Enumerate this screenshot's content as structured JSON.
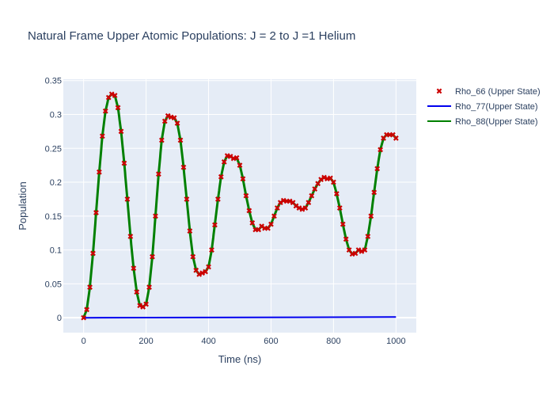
{
  "chart_data": {
    "type": "scatter",
    "title": "Natural Frame Upper Atomic Populations: J = 2 to J =1 Helium",
    "xlabel": "Time (ns)",
    "ylabel": "Population",
    "xlim": [
      -65,
      1065
    ],
    "ylim": [
      -0.022,
      0.352
    ],
    "xticks": [
      0,
      200,
      400,
      600,
      800,
      1000
    ],
    "yticks": [
      0,
      0.05,
      0.1,
      0.15,
      0.2,
      0.25,
      0.3,
      0.35
    ],
    "ytick_labels": [
      "0",
      "0.05",
      "0.1",
      "0.15",
      "0.2",
      "0.25",
      "0.3",
      "0.35"
    ],
    "grid": true,
    "legend_position": "right",
    "background": "#e5ecf6",
    "series": [
      {
        "name": "Rho_66 (Upper State)",
        "mode": "markers",
        "marker": "x",
        "color": "#cc0000",
        "x": [
          0,
          10,
          20,
          30,
          40,
          50,
          60,
          70,
          80,
          90,
          100,
          110,
          120,
          130,
          140,
          150,
          160,
          170,
          180,
          190,
          200,
          210,
          220,
          230,
          240,
          250,
          260,
          270,
          280,
          290,
          300,
          310,
          320,
          330,
          340,
          350,
          360,
          370,
          380,
          390,
          400,
          410,
          420,
          430,
          440,
          450,
          460,
          470,
          480,
          490,
          500,
          510,
          520,
          530,
          540,
          550,
          560,
          570,
          580,
          590,
          600,
          610,
          620,
          630,
          640,
          650,
          660,
          670,
          680,
          690,
          700,
          710,
          720,
          730,
          740,
          750,
          760,
          770,
          780,
          790,
          800,
          810,
          820,
          830,
          840,
          850,
          860,
          870,
          880,
          890,
          900,
          910,
          920,
          930,
          940,
          950,
          960,
          970,
          980,
          990,
          1000
        ],
        "y": [
          0,
          0.012,
          0.045,
          0.095,
          0.155,
          0.215,
          0.268,
          0.305,
          0.325,
          0.33,
          0.328,
          0.31,
          0.275,
          0.228,
          0.175,
          0.12,
          0.073,
          0.038,
          0.018,
          0.016,
          0.02,
          0.045,
          0.09,
          0.15,
          0.212,
          0.262,
          0.29,
          0.298,
          0.296,
          0.295,
          0.287,
          0.262,
          0.222,
          0.175,
          0.128,
          0.09,
          0.07,
          0.064,
          0.066,
          0.068,
          0.075,
          0.1,
          0.137,
          0.175,
          0.208,
          0.23,
          0.239,
          0.238,
          0.235,
          0.236,
          0.225,
          0.205,
          0.18,
          0.158,
          0.14,
          0.13,
          0.13,
          0.135,
          0.132,
          0.132,
          0.138,
          0.15,
          0.162,
          0.17,
          0.173,
          0.172,
          0.172,
          0.17,
          0.165,
          0.162,
          0.16,
          0.162,
          0.17,
          0.18,
          0.19,
          0.198,
          0.204,
          0.207,
          0.205,
          0.206,
          0.2,
          0.183,
          0.162,
          0.138,
          0.116,
          0.1,
          0.094,
          0.095,
          0.1,
          0.098,
          0.1,
          0.12,
          0.15,
          0.185,
          0.22,
          0.248,
          0.265,
          0.27,
          0.27,
          0.27,
          0.265
        ]
      },
      {
        "name": "Rho_77(Upper State)",
        "mode": "lines",
        "color": "#0000ee",
        "x": [
          0,
          1000
        ],
        "y": [
          0,
          0.001
        ]
      },
      {
        "name": "Rho_88(Upper State)",
        "mode": "lines",
        "color": "#008000",
        "x": [],
        "y": []
      }
    ]
  }
}
